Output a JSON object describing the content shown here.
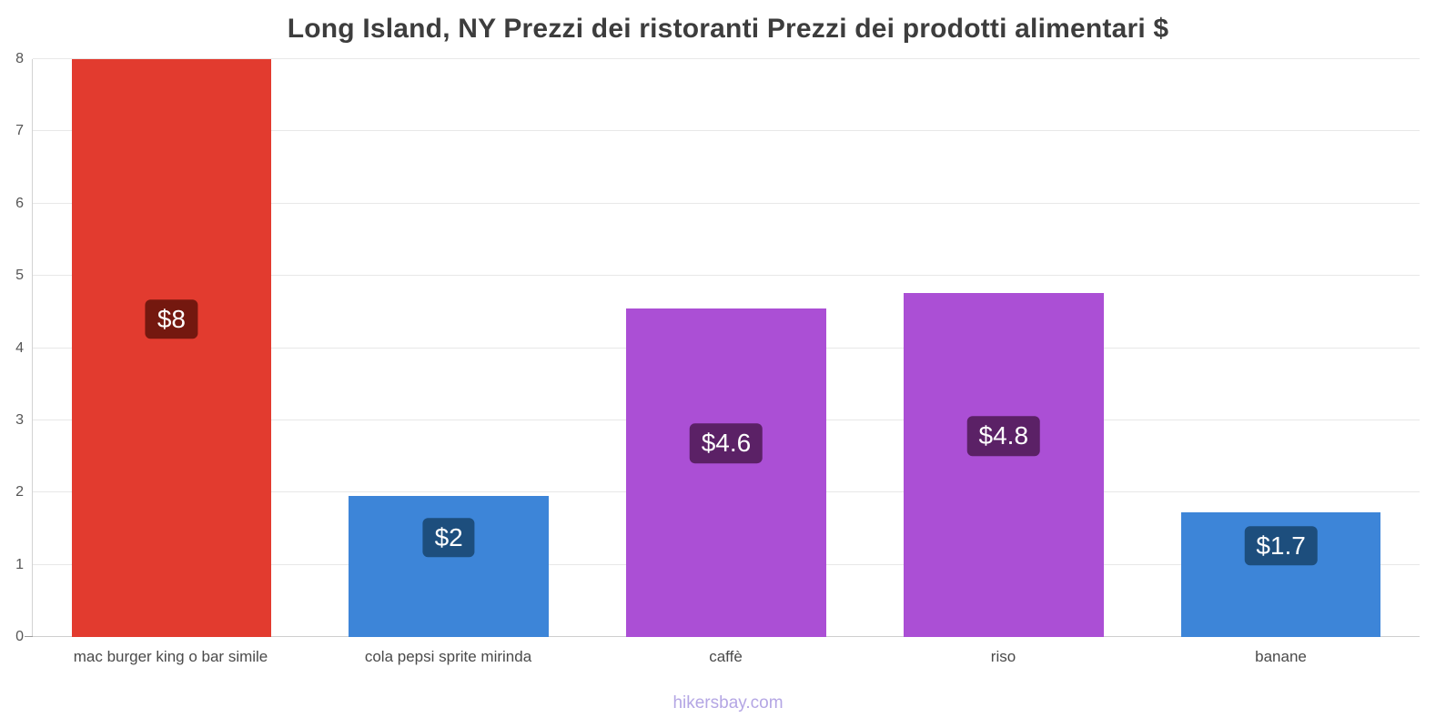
{
  "footer": "hikersbay.com",
  "chart_data": {
    "type": "bar",
    "title": "Long Island, NY Prezzi dei ristoranti Prezzi dei prodotti alimentari $",
    "categories": [
      "mac burger king o bar simile",
      "cola pepsi sprite mirinda",
      "caffè",
      "riso",
      "banane"
    ],
    "values": [
      8,
      1.95,
      4.55,
      4.76,
      1.72
    ],
    "labels": [
      "$8",
      "$2",
      "$4.6",
      "$4.8",
      "$1.7"
    ],
    "bar_colors": [
      "#e23b2f",
      "#3d85d8",
      "#ab4fd5",
      "#ab4fd5",
      "#3d85d8"
    ],
    "label_colors": [
      "#74180f",
      "#1d4e7d",
      "#5b2166",
      "#5b2166",
      "#1d4e7d"
    ],
    "ylim": [
      0,
      8
    ],
    "yticks": [
      0,
      1,
      2,
      3,
      4,
      5,
      6,
      7,
      8
    ],
    "xlabel": "",
    "ylabel": "",
    "grid": true,
    "legend": false,
    "currency": "$"
  }
}
